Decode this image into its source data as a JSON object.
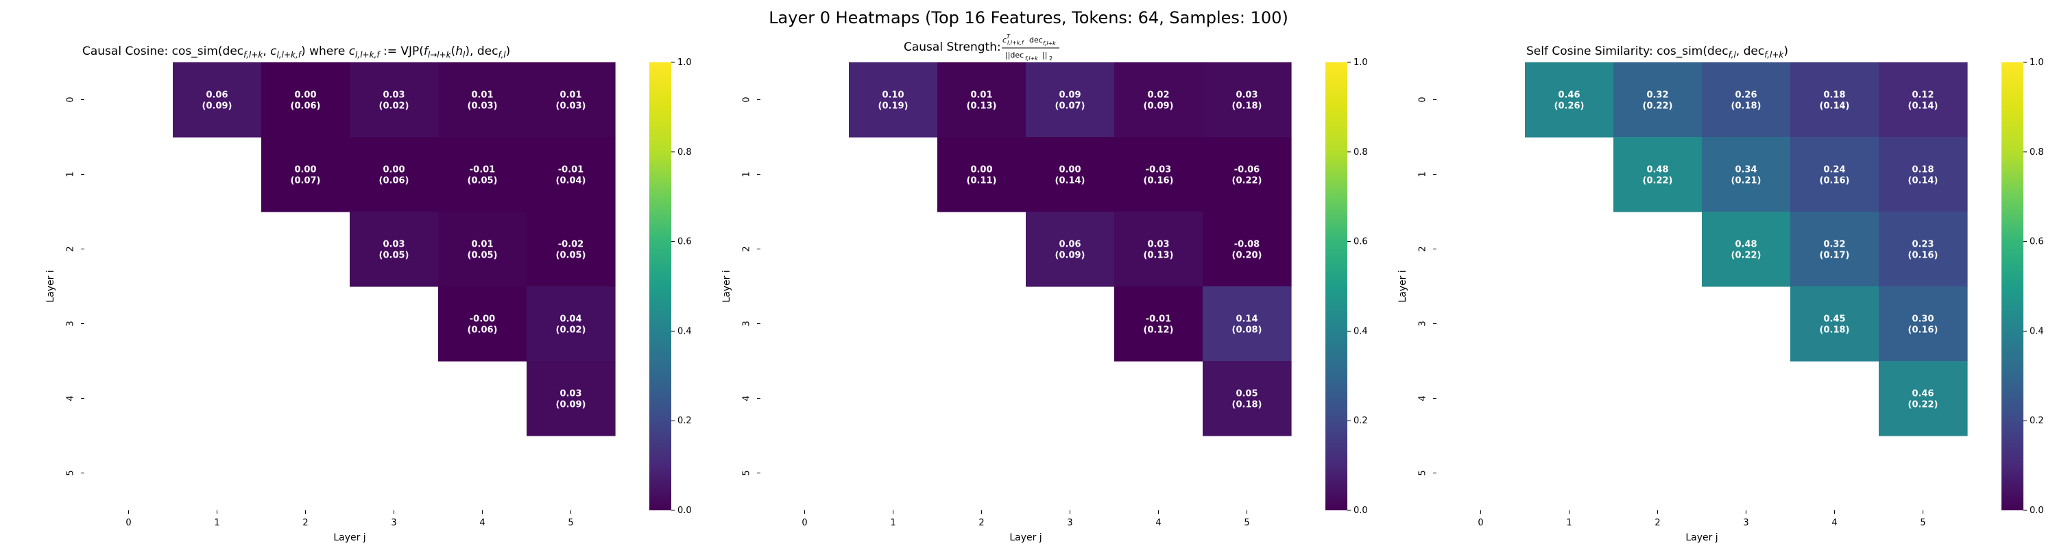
{
  "figure": {
    "title": "Layer 0 Heatmaps (Top 16 Features, Tokens: 64, Samples: 100)"
  },
  "chart_data": [
    {
      "type": "heatmap",
      "title": "Causal Cosine: cos_sim(dec_{f,l+k}, c_{l,l+k,f}) where c_{l,l+k,f} := VJP(f_{l→l+k}(h_l), dec_{f,l})",
      "xlabel": "Layer j",
      "ylabel": "Layer i",
      "x_ticks": [
        "0",
        "1",
        "2",
        "3",
        "4",
        "5"
      ],
      "y_ticks": [
        "0",
        "1",
        "2",
        "3",
        "4",
        "5"
      ],
      "colormap": "viridis",
      "vmin": 0.0,
      "vmax": 1.0,
      "colorbar_ticks": [
        "0.0",
        "0.2",
        "0.4",
        "0.6",
        "0.8",
        "1.0"
      ],
      "cells": [
        {
          "i": 0,
          "j": 1,
          "value": 0.06,
          "label": "0.06",
          "std": "(0.09)"
        },
        {
          "i": 0,
          "j": 2,
          "value": 0.0,
          "label": "0.00",
          "std": "(0.06)"
        },
        {
          "i": 0,
          "j": 3,
          "value": 0.03,
          "label": "0.03",
          "std": "(0.02)"
        },
        {
          "i": 0,
          "j": 4,
          "value": 0.01,
          "label": "0.01",
          "std": "(0.03)"
        },
        {
          "i": 0,
          "j": 5,
          "value": 0.01,
          "label": "0.01",
          "std": "(0.03)"
        },
        {
          "i": 1,
          "j": 2,
          "value": 0.0,
          "label": "0.00",
          "std": "(0.07)"
        },
        {
          "i": 1,
          "j": 3,
          "value": 0.0,
          "label": "0.00",
          "std": "(0.06)"
        },
        {
          "i": 1,
          "j": 4,
          "value": -0.01,
          "label": "-0.01",
          "std": "(0.05)"
        },
        {
          "i": 1,
          "j": 5,
          "value": -0.01,
          "label": "-0.01",
          "std": "(0.04)"
        },
        {
          "i": 2,
          "j": 3,
          "value": 0.03,
          "label": "0.03",
          "std": "(0.05)"
        },
        {
          "i": 2,
          "j": 4,
          "value": 0.01,
          "label": "0.01",
          "std": "(0.05)"
        },
        {
          "i": 2,
          "j": 5,
          "value": -0.02,
          "label": "-0.02",
          "std": "(0.05)"
        },
        {
          "i": 3,
          "j": 4,
          "value": -0.0,
          "label": "-0.00",
          "std": "(0.06)"
        },
        {
          "i": 3,
          "j": 5,
          "value": 0.04,
          "label": "0.04",
          "std": "(0.02)"
        },
        {
          "i": 4,
          "j": 5,
          "value": 0.03,
          "label": "0.03",
          "std": "(0.09)"
        }
      ]
    },
    {
      "type": "heatmap",
      "title": "Causal Strength: c^T_{l,l+k,f} dec_{f,l+k} / ||dec_{f,l+k}||_2",
      "xlabel": "Layer j",
      "ylabel": "Layer i",
      "x_ticks": [
        "0",
        "1",
        "2",
        "3",
        "4",
        "5"
      ],
      "y_ticks": [
        "0",
        "1",
        "2",
        "3",
        "4",
        "5"
      ],
      "colormap": "viridis",
      "vmin": 0.0,
      "vmax": 1.0,
      "colorbar_ticks": [
        "0.0",
        "0.2",
        "0.4",
        "0.6",
        "0.8",
        "1.0"
      ],
      "cells": [
        {
          "i": 0,
          "j": 1,
          "value": 0.1,
          "label": "0.10",
          "std": "(0.19)"
        },
        {
          "i": 0,
          "j": 2,
          "value": 0.01,
          "label": "0.01",
          "std": "(0.13)"
        },
        {
          "i": 0,
          "j": 3,
          "value": 0.09,
          "label": "0.09",
          "std": "(0.07)"
        },
        {
          "i": 0,
          "j": 4,
          "value": 0.02,
          "label": "0.02",
          "std": "(0.09)"
        },
        {
          "i": 0,
          "j": 5,
          "value": 0.03,
          "label": "0.03",
          "std": "(0.18)"
        },
        {
          "i": 1,
          "j": 2,
          "value": 0.0,
          "label": "0.00",
          "std": "(0.11)"
        },
        {
          "i": 1,
          "j": 3,
          "value": 0.0,
          "label": "0.00",
          "std": "(0.14)"
        },
        {
          "i": 1,
          "j": 4,
          "value": -0.03,
          "label": "-0.03",
          "std": "(0.16)"
        },
        {
          "i": 1,
          "j": 5,
          "value": -0.06,
          "label": "-0.06",
          "std": "(0.22)"
        },
        {
          "i": 2,
          "j": 3,
          "value": 0.06,
          "label": "0.06",
          "std": "(0.09)"
        },
        {
          "i": 2,
          "j": 4,
          "value": 0.03,
          "label": "0.03",
          "std": "(0.13)"
        },
        {
          "i": 2,
          "j": 5,
          "value": -0.08,
          "label": "-0.08",
          "std": "(0.20)"
        },
        {
          "i": 3,
          "j": 4,
          "value": -0.01,
          "label": "-0.01",
          "std": "(0.12)"
        },
        {
          "i": 3,
          "j": 5,
          "value": 0.14,
          "label": "0.14",
          "std": "(0.08)"
        },
        {
          "i": 4,
          "j": 5,
          "value": 0.05,
          "label": "0.05",
          "std": "(0.18)"
        }
      ]
    },
    {
      "type": "heatmap",
      "title": "Self Cosine Similarity: cos_sim(dec_{f,l}, dec_{f,l+k})",
      "xlabel": "Layer j",
      "ylabel": "Layer i",
      "x_ticks": [
        "0",
        "1",
        "2",
        "3",
        "4",
        "5"
      ],
      "y_ticks": [
        "0",
        "1",
        "2",
        "3",
        "4",
        "5"
      ],
      "colormap": "viridis",
      "vmin": 0.0,
      "vmax": 1.0,
      "colorbar_ticks": [
        "0.0",
        "0.2",
        "0.4",
        "0.6",
        "0.8",
        "1.0"
      ],
      "cells": [
        {
          "i": 0,
          "j": 1,
          "value": 0.46,
          "label": "0.46",
          "std": "(0.26)"
        },
        {
          "i": 0,
          "j": 2,
          "value": 0.32,
          "label": "0.32",
          "std": "(0.22)"
        },
        {
          "i": 0,
          "j": 3,
          "value": 0.26,
          "label": "0.26",
          "std": "(0.18)"
        },
        {
          "i": 0,
          "j": 4,
          "value": 0.18,
          "label": "0.18",
          "std": "(0.14)"
        },
        {
          "i": 0,
          "j": 5,
          "value": 0.12,
          "label": "0.12",
          "std": "(0.14)"
        },
        {
          "i": 1,
          "j": 2,
          "value": 0.48,
          "label": "0.48",
          "std": "(0.22)"
        },
        {
          "i": 1,
          "j": 3,
          "value": 0.34,
          "label": "0.34",
          "std": "(0.21)"
        },
        {
          "i": 1,
          "j": 4,
          "value": 0.24,
          "label": "0.24",
          "std": "(0.16)"
        },
        {
          "i": 1,
          "j": 5,
          "value": 0.18,
          "label": "0.18",
          "std": "(0.14)"
        },
        {
          "i": 2,
          "j": 3,
          "value": 0.48,
          "label": "0.48",
          "std": "(0.22)"
        },
        {
          "i": 2,
          "j": 4,
          "value": 0.32,
          "label": "0.32",
          "std": "(0.17)"
        },
        {
          "i": 2,
          "j": 5,
          "value": 0.23,
          "label": "0.23",
          "std": "(0.16)"
        },
        {
          "i": 3,
          "j": 4,
          "value": 0.45,
          "label": "0.45",
          "std": "(0.18)"
        },
        {
          "i": 3,
          "j": 5,
          "value": 0.3,
          "label": "0.30",
          "std": "(0.16)"
        },
        {
          "i": 4,
          "j": 5,
          "value": 0.46,
          "label": "0.46",
          "std": "(0.22)"
        }
      ]
    }
  ]
}
